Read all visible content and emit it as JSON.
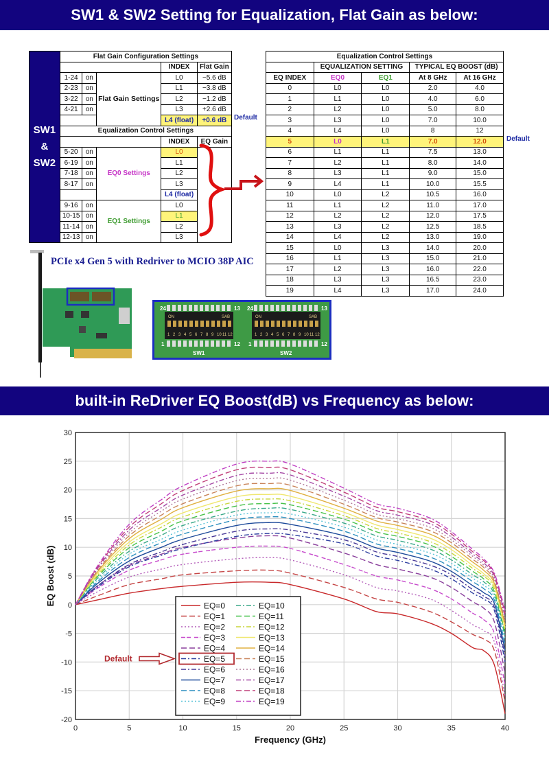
{
  "banners": {
    "top": "SW1 & SW2 Setting for Equalization, Flat Gain as below:",
    "bottom": "built-in ReDriver EQ Boost(dB) vs Frequency as below:"
  },
  "left_table": {
    "side_label": [
      "SW1",
      "&",
      "SW2"
    ],
    "flat_gain": {
      "title": "Flat Gain Configuration Settings",
      "col_index": "INDEX",
      "col_value": "Flat Gain",
      "group_label": "Flat Gain Settings",
      "rows": [
        {
          "switch": "1-24",
          "state": "on",
          "index": "L0",
          "value": "−5.6 dB"
        },
        {
          "switch": "2-23",
          "state": "on",
          "index": "L1",
          "value": "−3.8 dB"
        },
        {
          "switch": "3-22",
          "state": "on",
          "index": "L2",
          "value": "−1.2 dB"
        },
        {
          "switch": "4-21",
          "state": "on",
          "index": "L3",
          "value": "+2.6 dB"
        },
        {
          "switch": "",
          "state": "",
          "index": "L4 (float)",
          "value": "+0.6 dB"
        }
      ],
      "default_label": "Default"
    },
    "eq_control": {
      "title": "Equalization Control Settings",
      "col_index": "INDEX",
      "col_value": "EQ Gain",
      "eq0_label": "EQ0 Settings",
      "eq1_label": "EQ1 Settings",
      "eq0_rows": [
        {
          "switch": "5-20",
          "state": "on",
          "index": "L0"
        },
        {
          "switch": "6-19",
          "state": "on",
          "index": "L1"
        },
        {
          "switch": "7-18",
          "state": "on",
          "index": "L2"
        },
        {
          "switch": "8-17",
          "state": "on",
          "index": "L3"
        },
        {
          "switch": "",
          "state": "",
          "index": "L4 (float)"
        }
      ],
      "eq1_rows": [
        {
          "switch": "9-16",
          "state": "on",
          "index": "L0"
        },
        {
          "switch": "10-15",
          "state": "on",
          "index": "L1"
        },
        {
          "switch": "11-14",
          "state": "on",
          "index": "L2"
        },
        {
          "switch": "12-13",
          "state": "on",
          "index": "L3"
        }
      ]
    }
  },
  "right_table": {
    "title": "Equalization Control Settings",
    "group_setting": "EQUALIZATION SETTING",
    "group_boost": "TYPICAL EQ BOOST (dB)",
    "columns": [
      "EQ INDEX",
      "EQ0",
      "EQ1",
      "At 8 GHz",
      "At 16 GHz"
    ],
    "rows": [
      [
        "0",
        "L0",
        "L0",
        "2.0",
        "4.0"
      ],
      [
        "1",
        "L1",
        "L0",
        "4.0",
        "6.0"
      ],
      [
        "2",
        "L2",
        "L0",
        "5.0",
        "8.0"
      ],
      [
        "3",
        "L3",
        "L0",
        "7.0",
        "10.0"
      ],
      [
        "4",
        "L4",
        "L0",
        "8",
        "12"
      ],
      [
        "5",
        "L0",
        "L1",
        "7.0",
        "12.0"
      ],
      [
        "6",
        "L1",
        "L1",
        "7.5",
        "13.0"
      ],
      [
        "7",
        "L2",
        "L1",
        "8.0",
        "14.0"
      ],
      [
        "8",
        "L3",
        "L1",
        "9.0",
        "15.0"
      ],
      [
        "9",
        "L4",
        "L1",
        "10.0",
        "15.5"
      ],
      [
        "10",
        "L0",
        "L2",
        "10.5",
        "16.0"
      ],
      [
        "11",
        "L1",
        "L2",
        "11.0",
        "17.0"
      ],
      [
        "12",
        "L2",
        "L2",
        "12.0",
        "17.5"
      ],
      [
        "13",
        "L3",
        "L2",
        "12.5",
        "18.5"
      ],
      [
        "14",
        "L4",
        "L2",
        "13.0",
        "19.0"
      ],
      [
        "15",
        "L0",
        "L3",
        "14.0",
        "20.0"
      ],
      [
        "16",
        "L1",
        "L3",
        "15.0",
        "21.0"
      ],
      [
        "17",
        "L2",
        "L3",
        "16.0",
        "22.0"
      ],
      [
        "18",
        "L3",
        "L3",
        "16.5",
        "23.0"
      ],
      [
        "19",
        "L4",
        "L3",
        "17.0",
        "24.0"
      ]
    ],
    "default_row": 5,
    "default_label": "Default"
  },
  "product": {
    "title": "PCIe x4 Gen 5 with Redriver to MCIO 38P AIC",
    "sw1_label": "SW1",
    "sw2_label": "SW2",
    "dip_on": "ON",
    "dip_brand": "SAB",
    "dip_numbers": [
      "1",
      "2",
      "3",
      "4",
      "5",
      "6",
      "7",
      "8",
      "9",
      "10",
      "11",
      "12"
    ],
    "pin_left_top": "24",
    "pin_right_top": "13",
    "pin_left_bottom": "1",
    "pin_right_bottom": "12"
  },
  "chart_data": {
    "type": "line",
    "title": "built-in ReDriver EQ Boost(dB) vs Frequency",
    "xlabel": "Frequency (GHz)",
    "ylabel": "EQ Boost (dB)",
    "xlim": [
      0,
      40
    ],
    "ylim": [
      -20,
      30
    ],
    "xticks": [
      0,
      5,
      10,
      15,
      20,
      25,
      30,
      35,
      40
    ],
    "yticks": [
      -20,
      -15,
      -10,
      -5,
      0,
      5,
      10,
      15,
      20,
      25,
      30
    ],
    "grid": true,
    "legend_position": "lower-center",
    "annotation": "Default",
    "annotation_target": "EQ=5",
    "x": [
      0,
      2,
      5,
      8,
      10,
      15,
      18,
      20,
      25,
      28,
      30,
      33,
      35,
      37,
      38,
      39,
      40
    ],
    "series": [
      {
        "name": "EQ=0",
        "color": "#c8282a",
        "dash": "solid",
        "values": [
          0,
          0.8,
          2.0,
          2.8,
          3.2,
          3.9,
          3.9,
          3.5,
          1.0,
          -1.2,
          -1.6,
          -3.2,
          -5.0,
          -7.5,
          -8.0,
          -10.5,
          -19
        ]
      },
      {
        "name": "EQ=1",
        "color": "#c54545",
        "dash": "longdash",
        "values": [
          0,
          1.5,
          3.5,
          4.5,
          5.2,
          5.9,
          6.0,
          5.5,
          3.0,
          1.0,
          0.4,
          -1.2,
          -3.0,
          -5.2,
          -6.0,
          -8.0,
          -17
        ]
      },
      {
        "name": "EQ=2",
        "color": "#b25ab8",
        "dash": "dotted",
        "values": [
          0,
          2.2,
          4.8,
          6.2,
          7.0,
          8.0,
          8.2,
          7.8,
          5.2,
          3.0,
          2.4,
          1.0,
          -1.0,
          -3.5,
          -4.5,
          -6.5,
          -16
        ]
      },
      {
        "name": "EQ=3",
        "color": "#c74bcc",
        "dash": "dashdash",
        "values": [
          0,
          2.8,
          6.0,
          7.8,
          8.8,
          10.0,
          10.2,
          9.8,
          7.0,
          5.0,
          4.3,
          2.8,
          1.0,
          -1.5,
          -2.6,
          -5.0,
          -14
        ]
      },
      {
        "name": "EQ=4",
        "color": "#8a3f9c",
        "dash": "longdash",
        "values": [
          0,
          3.2,
          6.8,
          8.8,
          10.0,
          11.6,
          12.0,
          11.6,
          9.0,
          7.0,
          6.2,
          4.8,
          3.0,
          0.5,
          -0.6,
          -3.0,
          -12
        ]
      },
      {
        "name": "EQ=5",
        "color": "#2e3fa0",
        "dash": "dashdot",
        "values": [
          0,
          3.0,
          6.6,
          8.6,
          9.8,
          11.9,
          12.4,
          12.2,
          10.6,
          8.5,
          7.7,
          6.2,
          4.5,
          2.0,
          1.0,
          -1.0,
          -10
        ]
      },
      {
        "name": "EQ=6",
        "color": "#4a3a98",
        "dash": "dashdot",
        "values": [
          0,
          3.2,
          7.0,
          9.2,
          10.5,
          12.8,
          13.2,
          13.0,
          11.3,
          9.2,
          8.4,
          6.9,
          5.2,
          2.6,
          1.5,
          -0.5,
          -9
        ]
      },
      {
        "name": "EQ=7",
        "color": "#1d4a9a",
        "dash": "solid",
        "values": [
          0,
          3.6,
          7.6,
          10.0,
          11.4,
          13.8,
          14.3,
          14.0,
          12.0,
          9.9,
          9.1,
          7.6,
          5.8,
          3.3,
          2.1,
          0.2,
          -8
        ]
      },
      {
        "name": "EQ=8",
        "color": "#2c8fbf",
        "dash": "longdash",
        "values": [
          0,
          3.9,
          8.2,
          10.8,
          12.3,
          14.8,
          15.3,
          15.0,
          12.8,
          10.6,
          9.8,
          8.3,
          6.5,
          4.0,
          2.8,
          0.8,
          -7
        ]
      },
      {
        "name": "EQ=9",
        "color": "#58c3d8",
        "dash": "dotted",
        "values": [
          0,
          4.2,
          8.8,
          11.4,
          13.0,
          15.6,
          16.0,
          15.8,
          13.5,
          11.3,
          10.5,
          9.0,
          7.2,
          4.6,
          3.4,
          1.3,
          -6
        ]
      },
      {
        "name": "EQ=10",
        "color": "#3ba98a",
        "dash": "dashdot",
        "values": [
          0,
          4.5,
          9.3,
          12.1,
          13.8,
          16.3,
          16.8,
          16.6,
          14.2,
          12.0,
          11.2,
          9.7,
          7.8,
          5.2,
          4.0,
          1.8,
          -5.5
        ]
      },
      {
        "name": "EQ=11",
        "color": "#47c24a",
        "dash": "longdash",
        "values": [
          0,
          4.8,
          9.9,
          12.8,
          14.6,
          17.2,
          17.6,
          17.4,
          14.9,
          12.7,
          11.9,
          10.4,
          8.4,
          5.8,
          4.5,
          2.3,
          -5
        ]
      },
      {
        "name": "EQ=12",
        "color": "#c9d63b",
        "dash": "dashdot",
        "values": [
          0,
          5.0,
          10.4,
          13.5,
          15.3,
          18.0,
          18.4,
          18.1,
          15.5,
          13.3,
          12.5,
          11.0,
          9.0,
          6.3,
          5.0,
          2.8,
          -4.5
        ]
      },
      {
        "name": "EQ=13",
        "color": "#f0e770",
        "dash": "solid",
        "values": [
          0,
          5.3,
          10.9,
          14.1,
          16.0,
          18.8,
          19.2,
          18.9,
          16.1,
          13.9,
          13.1,
          11.6,
          9.6,
          6.8,
          5.4,
          3.2,
          -4
        ]
      },
      {
        "name": "EQ=14",
        "color": "#e0b040",
        "dash": "solid",
        "values": [
          0,
          5.6,
          11.5,
          14.9,
          16.9,
          19.8,
          20.2,
          19.9,
          16.8,
          14.6,
          13.8,
          12.3,
          10.2,
          7.4,
          6.0,
          3.7,
          -3.5
        ]
      },
      {
        "name": "EQ=15",
        "color": "#c9845a",
        "dash": "longdash",
        "values": [
          0,
          5.8,
          12.0,
          15.6,
          17.6,
          20.7,
          21.1,
          20.8,
          17.5,
          15.2,
          14.4,
          12.9,
          10.8,
          7.9,
          6.5,
          4.1,
          -3
        ]
      },
      {
        "name": "EQ=16",
        "color": "#b17a9a",
        "dash": "dotted",
        "values": [
          0,
          6.0,
          12.5,
          16.3,
          18.4,
          21.6,
          22.0,
          21.7,
          18.2,
          15.8,
          15.0,
          13.5,
          11.3,
          8.4,
          6.9,
          4.5,
          -2.5
        ]
      },
      {
        "name": "EQ=17",
        "color": "#a64aa6",
        "dash": "dashdot",
        "values": [
          0,
          6.2,
          13.0,
          16.9,
          19.1,
          22.5,
          22.9,
          22.6,
          18.9,
          16.4,
          15.6,
          14.1,
          11.8,
          8.8,
          7.3,
          4.9,
          -2
        ]
      },
      {
        "name": "EQ=18",
        "color": "#c0407a",
        "dash": "longdash",
        "values": [
          0,
          6.4,
          13.5,
          17.6,
          19.9,
          23.5,
          23.9,
          23.5,
          19.6,
          17.0,
          16.2,
          14.6,
          12.3,
          9.2,
          7.7,
          5.2,
          -1.5
        ]
      },
      {
        "name": "EQ=19",
        "color": "#c040c4",
        "dash": "dashdot",
        "values": [
          0,
          6.6,
          14.0,
          18.3,
          20.7,
          24.5,
          25.0,
          24.5,
          20.3,
          17.6,
          16.8,
          15.1,
          12.7,
          9.6,
          8.0,
          5.5,
          -1
        ]
      }
    ]
  }
}
